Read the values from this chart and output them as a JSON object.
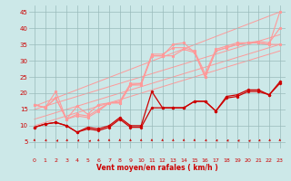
{
  "background_color": "#cce8e8",
  "grid_color": "#99bbbb",
  "xlabel": "Vent moyen/en rafales ( km/h )",
  "xlim": [
    -0.5,
    23.5
  ],
  "ylim": [
    3,
    47
  ],
  "yticks": [
    5,
    10,
    15,
    20,
    25,
    30,
    35,
    40,
    45
  ],
  "xticks": [
    0,
    1,
    2,
    3,
    4,
    5,
    6,
    7,
    8,
    9,
    10,
    11,
    12,
    13,
    14,
    15,
    16,
    17,
    18,
    19,
    20,
    21,
    22,
    23
  ],
  "color_dark_red": "#cc0000",
  "color_light_red": "#ff9999",
  "ref_lines": [
    [
      0,
      10,
      23,
      33
    ],
    [
      0,
      12,
      23,
      35
    ],
    [
      0,
      15,
      23,
      38
    ],
    [
      0,
      16,
      23,
      45
    ]
  ],
  "data_line1_y": [
    9.5,
    10.5,
    11.0,
    10.0,
    8.0,
    9.5,
    9.0,
    10.0,
    12.5,
    10.0,
    10.0,
    20.5,
    15.5,
    15.5,
    15.5,
    17.5,
    17.5,
    14.5,
    19.0,
    19.5,
    21.0,
    21.0,
    19.5,
    23.5
  ],
  "data_line2_y": [
    16.5,
    15.5,
    20.5,
    12.0,
    16.0,
    13.5,
    16.5,
    17.0,
    17.0,
    22.5,
    23.0,
    31.5,
    31.5,
    35.0,
    35.5,
    32.5,
    25.0,
    33.0,
    34.0,
    35.0,
    35.5,
    35.5,
    35.0,
    45.0
  ],
  "data_line3_y": [
    9.5,
    10.5,
    11.0,
    10.0,
    8.0,
    9.0,
    8.5,
    9.5,
    12.0,
    9.5,
    9.5,
    15.5,
    15.5,
    15.5,
    15.5,
    17.5,
    17.5,
    14.5,
    18.5,
    19.0,
    20.5,
    20.5,
    19.5,
    23.0
  ],
  "data_line4_y": [
    16.5,
    15.5,
    18.5,
    12.0,
    13.0,
    12.5,
    14.5,
    17.0,
    17.0,
    22.5,
    22.5,
    31.5,
    31.5,
    31.5,
    33.5,
    32.5,
    25.0,
    33.0,
    34.0,
    35.0,
    35.5,
    35.5,
    35.0,
    35.0
  ],
  "data_line5_y": [
    16.5,
    15.5,
    18.5,
    12.0,
    13.5,
    13.0,
    15.0,
    17.0,
    17.5,
    23.0,
    23.0,
    32.0,
    32.0,
    34.0,
    34.0,
    33.0,
    26.0,
    33.5,
    34.5,
    35.5,
    35.5,
    36.0,
    35.5,
    40.0
  ],
  "arrow_angles_deg": [
    90,
    75,
    60,
    80,
    65,
    50,
    90,
    90,
    90,
    90,
    90,
    90,
    90,
    90,
    90,
    90,
    75,
    70,
    65,
    60,
    55,
    70,
    80,
    90
  ]
}
